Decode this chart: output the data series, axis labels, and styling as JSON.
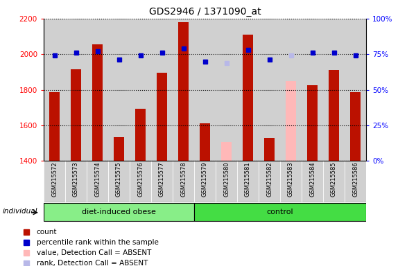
{
  "title": "GDS2946 / 1371090_at",
  "samples": [
    "GSM215572",
    "GSM215573",
    "GSM215574",
    "GSM215575",
    "GSM215576",
    "GSM215577",
    "GSM215578",
    "GSM215579",
    "GSM215580",
    "GSM215581",
    "GSM215582",
    "GSM215583",
    "GSM215584",
    "GSM215585",
    "GSM215586"
  ],
  "bar_values": [
    1785,
    1915,
    2055,
    1535,
    1695,
    1895,
    2180,
    1610,
    null,
    2110,
    1530,
    null,
    1825,
    1910,
    1785
  ],
  "bar_absent_values": [
    null,
    null,
    null,
    null,
    null,
    null,
    null,
    null,
    1505,
    null,
    null,
    1850,
    null,
    null,
    null
  ],
  "bar_color_present": "#bb1100",
  "bar_color_absent": "#ffb8b8",
  "rank_values": [
    74,
    76,
    77,
    71,
    74,
    76,
    79,
    70,
    null,
    78,
    71,
    null,
    76,
    76,
    74
  ],
  "rank_absent_values": [
    null,
    null,
    null,
    null,
    null,
    null,
    null,
    null,
    69,
    null,
    null,
    74,
    null,
    null,
    null
  ],
  "rank_color_present": "#0000cc",
  "rank_color_absent": "#b8b8e8",
  "ylim_left": [
    1400,
    2200
  ],
  "ylim_right": [
    0,
    100
  ],
  "yticks_left": [
    1400,
    1600,
    1800,
    2000,
    2200
  ],
  "yticks_right": [
    0,
    25,
    50,
    75,
    100
  ],
  "group1_label": "diet-induced obese",
  "group1_count": 7,
  "group2_label": "control",
  "group2_count": 8,
  "individual_label": "individual",
  "col_bg": "#d0d0d0",
  "plot_bg": "#ffffff",
  "group1_color": "#88ee88",
  "group2_color": "#44dd44",
  "legend_items": [
    {
      "label": "count",
      "color": "#bb1100"
    },
    {
      "label": "percentile rank within the sample",
      "color": "#0000cc"
    },
    {
      "label": "value, Detection Call = ABSENT",
      "color": "#ffb8b8"
    },
    {
      "label": "rank, Detection Call = ABSENT",
      "color": "#b8b8e8"
    }
  ]
}
